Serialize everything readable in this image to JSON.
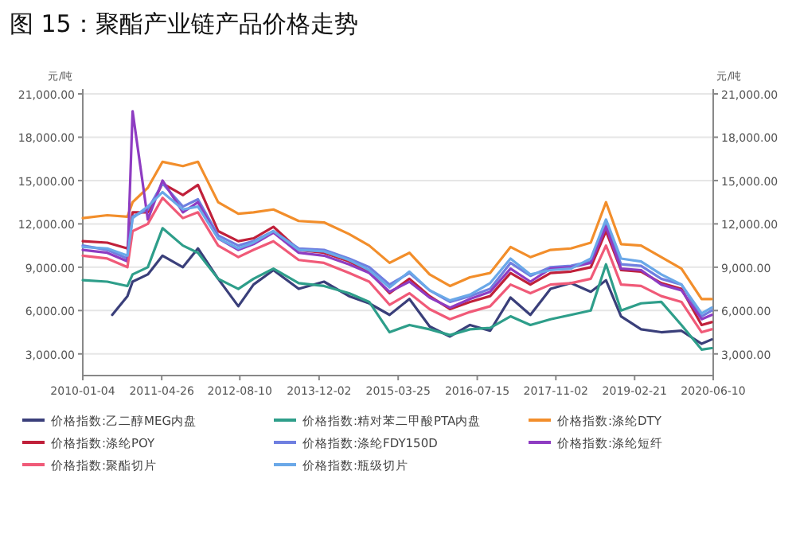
{
  "chart_data": {
    "type": "line",
    "title": "图 15：聚酯产业链产品价格走势",
    "ylabel": "元/吨",
    "y2label": "元/吨",
    "x": [
      "2010-01-04",
      "2010-06",
      "2010-10",
      "2010-11",
      "2011-02",
      "2011-05",
      "2011-09",
      "2011-12",
      "2012-04",
      "2012-08",
      "2012-11",
      "2013-03",
      "2013-08",
      "2014-01",
      "2014-06",
      "2014-10",
      "2015-02",
      "2015-06",
      "2015-10",
      "2016-02",
      "2016-06",
      "2016-10",
      "2017-02",
      "2017-06",
      "2017-10",
      "2018-02",
      "2018-06",
      "2018-09",
      "2018-12",
      "2019-04",
      "2019-08",
      "2019-12",
      "2020-04",
      "2020-06"
    ],
    "xlim": [
      "2010-01-04",
      "2020-06-10"
    ],
    "xticks": [
      "2010-01-04",
      "2011-04-26",
      "2012-08-10",
      "2013-12-02",
      "2015-03-25",
      "2016-07-15",
      "2017-11-02",
      "2019-02-21",
      "2020-06-10"
    ],
    "ylim": [
      1500,
      21000
    ],
    "yticks": [
      {
        "value": 3000,
        "label": "3,000.00"
      },
      {
        "value": 6000,
        "label": "6,000.00"
      },
      {
        "value": 9000,
        "label": "9,000.00"
      },
      {
        "value": 12000,
        "label": "12,000.00"
      },
      {
        "value": 15000,
        "label": "15,000.00"
      },
      {
        "value": 18000,
        "label": "18,000.00"
      },
      {
        "value": 21000,
        "label": "21,000.00"
      }
    ],
    "y2lim": [
      1500,
      21000
    ],
    "y2ticks": [
      {
        "value": 3000,
        "label": "3,000.00"
      },
      {
        "value": 6000,
        "label": "6,000.00"
      },
      {
        "value": 9000,
        "label": "9,000.00"
      },
      {
        "value": 12000,
        "label": "12,000.00"
      },
      {
        "value": 15000,
        "label": "15,000.00"
      },
      {
        "value": 18000,
        "label": "18,000.00"
      },
      {
        "value": 21000,
        "label": "21,000.00"
      }
    ],
    "grid": "y",
    "legend": "bottom",
    "series": [
      {
        "name": "价格指数:乙二醇MEG内盘",
        "color": "#3a3f7a",
        "x": [
          "2010-07",
          "2010-10",
          "2010-11",
          "2011-02",
          "2011-05",
          "2011-09",
          "2011-12",
          "2012-04",
          "2012-08",
          "2012-11",
          "2013-03",
          "2013-08",
          "2014-01",
          "2014-06",
          "2014-10",
          "2015-02",
          "2015-06",
          "2015-10",
          "2016-02",
          "2016-06",
          "2016-10",
          "2017-02",
          "2017-06",
          "2017-10",
          "2018-02",
          "2018-06",
          "2018-09",
          "2018-12",
          "2019-04",
          "2019-08",
          "2019-12",
          "2020-04",
          "2020-06"
        ],
        "values": [
          5700,
          7000,
          8000,
          8500,
          9800,
          9000,
          10300,
          8200,
          6300,
          7800,
          8800,
          7500,
          8000,
          7000,
          6500,
          5700,
          6800,
          4900,
          4200,
          5000,
          4600,
          6900,
          5700,
          7500,
          7900,
          7300,
          8100,
          5600,
          4700,
          4500,
          4600,
          3700,
          4000
        ]
      },
      {
        "name": "价格指数:精对苯二甲酸PTA内盘",
        "color": "#2e9e8a",
        "values": [
          8100,
          8000,
          7700,
          8500,
          9000,
          11700,
          10500,
          10000,
          8200,
          7500,
          8200,
          8900,
          7900,
          7700,
          7200,
          6600,
          4500,
          5000,
          4700,
          4300,
          4700,
          4800,
          5600,
          5000,
          5400,
          5700,
          6000,
          9200,
          6000,
          6500,
          6600,
          5000,
          3300,
          3400
        ]
      },
      {
        "name": "价格指数:涤纶DTY",
        "color": "#f28e2b",
        "values": [
          12400,
          12600,
          12500,
          13500,
          14500,
          16300,
          16000,
          16300,
          13500,
          12700,
          12800,
          13000,
          12200,
          12100,
          11300,
          10500,
          9300,
          10000,
          8500,
          7700,
          8300,
          8600,
          10400,
          9700,
          10200,
          10300,
          10700,
          13500,
          10600,
          10500,
          9700,
          8900,
          6800,
          6800
        ]
      },
      {
        "name": "价格指数:涤纶POY",
        "color": "#c0203a",
        "values": [
          10800,
          10700,
          10300,
          12800,
          12800,
          14800,
          14000,
          14700,
          11500,
          10800,
          11000,
          11800,
          10200,
          10000,
          9400,
          8700,
          7200,
          8200,
          7000,
          6100,
          6600,
          7000,
          8600,
          7800,
          8600,
          8700,
          9000,
          11500,
          8800,
          8700,
          7900,
          7500,
          5000,
          5200
        ]
      },
      {
        "name": "价格指数:涤纶FDY150D",
        "color": "#6f7fe0",
        "values": [
          10500,
          10200,
          9600,
          12500,
          13000,
          14800,
          13200,
          13700,
          11200,
          10500,
          10800,
          11500,
          10300,
          10200,
          9600,
          9000,
          7800,
          8600,
          7400,
          6600,
          7000,
          7500,
          9300,
          8400,
          9000,
          9100,
          9400,
          12000,
          9200,
          9100,
          8200,
          7800,
          5600,
          6000
        ]
      },
      {
        "name": "价格指数:涤纶短纤",
        "color": "#8e3cc2",
        "values": [
          10200,
          10000,
          9400,
          19800,
          12300,
          15000,
          12800,
          13500,
          11000,
          10200,
          10600,
          11400,
          10000,
          9800,
          9200,
          8600,
          7300,
          8000,
          6900,
          6200,
          6800,
          7300,
          8900,
          8000,
          8900,
          9000,
          9300,
          11800,
          8900,
          8800,
          7800,
          7400,
          5400,
          5700
        ]
      },
      {
        "name": "价格指数:聚酯切片",
        "color": "#f05a78",
        "values": [
          9800,
          9600,
          9000,
          11500,
          12000,
          13800,
          12400,
          12800,
          10500,
          9700,
          10200,
          10800,
          9500,
          9300,
          8600,
          8000,
          6400,
          7200,
          6100,
          5400,
          5900,
          6300,
          7800,
          7200,
          7800,
          7900,
          8200,
          10500,
          7800,
          7700,
          7000,
          6600,
          4500,
          4700
        ]
      },
      {
        "name": "价格指数:瓶级切片",
        "color": "#6aa8e8",
        "values": [
          10400,
          10300,
          9800,
          12400,
          13200,
          14200,
          13000,
          13200,
          11000,
          10300,
          10700,
          11500,
          10200,
          10100,
          9500,
          8800,
          7600,
          8700,
          7400,
          6700,
          7100,
          7900,
          9600,
          8500,
          8800,
          8900,
          9600,
          12300,
          9600,
          9400,
          8500,
          7800,
          5800,
          6200
        ]
      }
    ]
  }
}
